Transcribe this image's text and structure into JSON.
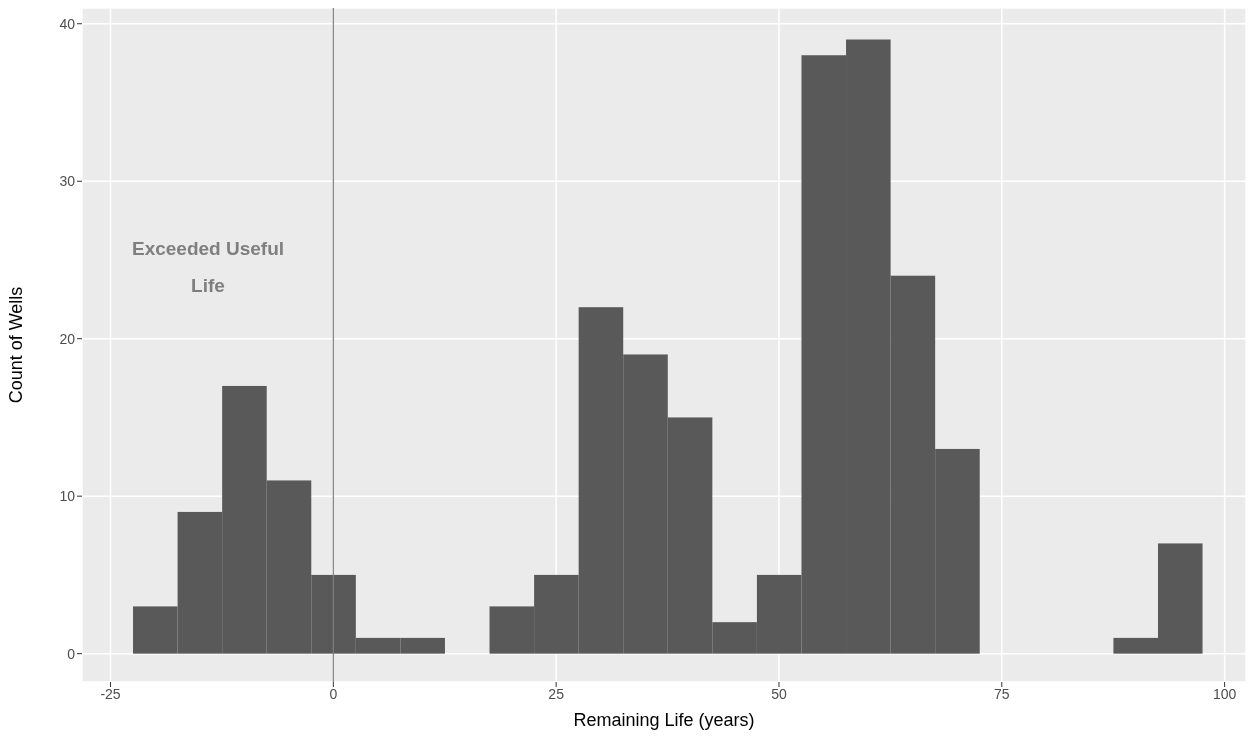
{
  "chart_data": {
    "type": "histogram",
    "xlabel": "Remaining Life (years)",
    "ylabel": "Count of Wells",
    "bins": [
      -22.5,
      -17.5,
      -12.5,
      -7.5,
      -2.5,
      2.5,
      7.5,
      12.5,
      17.5,
      22.5,
      27.5,
      32.5,
      37.5,
      42.5,
      47.5,
      52.5,
      57.5,
      62.5,
      67.5,
      72.5,
      77.5,
      82.5,
      87.5,
      92.5,
      97.5
    ],
    "values": [
      3,
      9,
      17,
      11,
      5,
      1,
      1,
      0,
      3,
      5,
      22,
      19,
      15,
      2,
      5,
      38,
      39,
      24,
      13,
      0,
      0,
      0,
      1,
      7
    ],
    "color": "#595959",
    "xlim": [
      -28.2,
      102.4
    ],
    "xticks": [
      -25,
      0,
      25,
      50,
      75,
      100
    ],
    "ylim": [
      -1.8,
      41
    ],
    "yticks": [
      0,
      10,
      20,
      30,
      40
    ],
    "grid": true,
    "ref_lines": [
      {
        "axis": "x",
        "value": 0,
        "label": null,
        "color": "#7f7f7f"
      }
    ],
    "annotations": [
      "Exceeded Useful Life"
    ]
  }
}
